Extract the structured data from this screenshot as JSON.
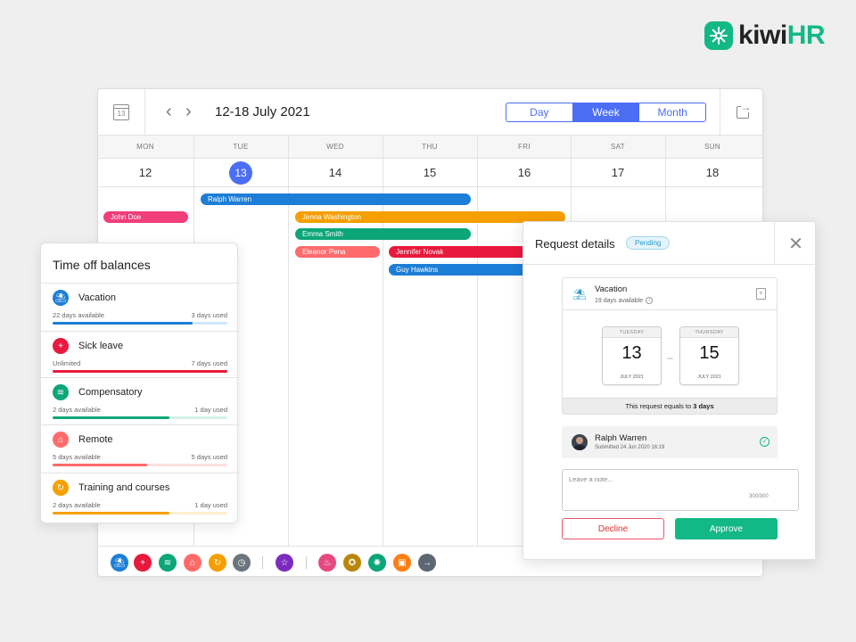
{
  "brand": {
    "kiwi": "kiwi",
    "hr": "HR",
    "color": "#12b886"
  },
  "calendar": {
    "icon_day": "13",
    "range": "12-18 July 2021",
    "views": [
      "Day",
      "Week",
      "Month"
    ],
    "active_view": "Week",
    "days": [
      {
        "name": "MON",
        "num": "12"
      },
      {
        "name": "TUE",
        "num": "13",
        "today": true
      },
      {
        "name": "WED",
        "num": "14"
      },
      {
        "name": "THU",
        "num": "15"
      },
      {
        "name": "FRI",
        "num": "16"
      },
      {
        "name": "SAT",
        "num": "17"
      },
      {
        "name": "SUN",
        "num": "18"
      }
    ],
    "events": [
      {
        "name": "Ralph Warren",
        "color": "#1c7ed6"
      },
      {
        "name": "John Doe",
        "color": "#f03e7a"
      },
      {
        "name": "Jenna Washington",
        "color": "#f59f00"
      },
      {
        "name": "Emma Smith",
        "color": "#0ca678"
      },
      {
        "name": "Eleanor Pena",
        "color": "#ff6b6b"
      },
      {
        "name": "Jennifer Novak",
        "color": "#e8193c"
      },
      {
        "name": "Guy Hawkins",
        "color": "#1c7ed6"
      }
    ],
    "footer_icons": [
      {
        "icon": "palm-tree-icon",
        "glyph": "⛱",
        "color": "#1c7ed6"
      },
      {
        "icon": "plus-cross-icon",
        "glyph": "+",
        "color": "#e8193c"
      },
      {
        "icon": "layers-icon",
        "glyph": "≋",
        "color": "#0ca678"
      },
      {
        "icon": "home-icon",
        "glyph": "⌂",
        "color": "#ff6b6b"
      },
      {
        "icon": "training-icon",
        "glyph": "↻",
        "color": "#f59f00"
      },
      {
        "icon": "calendar-clock-icon",
        "glyph": "◷",
        "color": "#6c757d"
      },
      {
        "icon": "star-icon",
        "glyph": "☆",
        "color": "#7b2cbf"
      },
      {
        "icon": "birthday-icon",
        "glyph": "♨",
        "color": "#e64980"
      },
      {
        "icon": "medal-icon",
        "glyph": "✪",
        "color": "#b8860b"
      },
      {
        "icon": "bulb-icon",
        "glyph": "✺",
        "color": "#0ca678"
      },
      {
        "icon": "badge-icon",
        "glyph": "▣",
        "color": "#fd7e14"
      },
      {
        "icon": "enter-icon",
        "glyph": "→",
        "color": "#5c6773"
      }
    ]
  },
  "balances": {
    "title": "Time off balances",
    "items": [
      {
        "name": "Vacation",
        "available": "22 days available",
        "used": "3 days used",
        "color": "#1c7ed6",
        "track": "#d0e6fa",
        "fill": 0.8,
        "icon": "palm-tree-icon",
        "glyph": "⛱"
      },
      {
        "name": "Sick leave",
        "available": "Unlimited",
        "used": "7 days used",
        "color": "#e8193c",
        "track": "#fadadf",
        "fill": 1.0,
        "icon": "plus-cross-icon",
        "glyph": "+"
      },
      {
        "name": "Compensatory",
        "available": "2 days available",
        "used": "1 day used",
        "color": "#0ca678",
        "track": "#d3f2e8",
        "fill": 0.67,
        "icon": "layers-icon",
        "glyph": "≋"
      },
      {
        "name": "Remote",
        "available": "5 days available",
        "used": "5 days used",
        "color": "#ff6b6b",
        "track": "#fde0dd",
        "fill": 0.54,
        "icon": "home-icon",
        "glyph": "⌂"
      },
      {
        "name": "Training and courses",
        "available": "2 days available",
        "used": "1 day used",
        "color": "#f59f00",
        "track": "#fdefd1",
        "fill": 0.67,
        "icon": "training-icon",
        "glyph": "↻"
      }
    ]
  },
  "request": {
    "title": "Request details",
    "status": "Pending",
    "leave_type": "Vacation",
    "leave_days": "19 days available",
    "from": {
      "dow": "TUESDAY",
      "day": "13",
      "month": "JULY 2021"
    },
    "to": {
      "dow": "THURSDAY",
      "day": "15",
      "month": "JULY 2021"
    },
    "equals_prefix": "This request equals to ",
    "equals_value": "3 days",
    "approver_name": "Ralph Warren",
    "approver_sub": "Submitted 24 Jun 2020 16:19",
    "note_placeholder": "Leave a note...",
    "note_count": "300/300",
    "decline_label": "Decline",
    "approve_label": "Approve"
  }
}
